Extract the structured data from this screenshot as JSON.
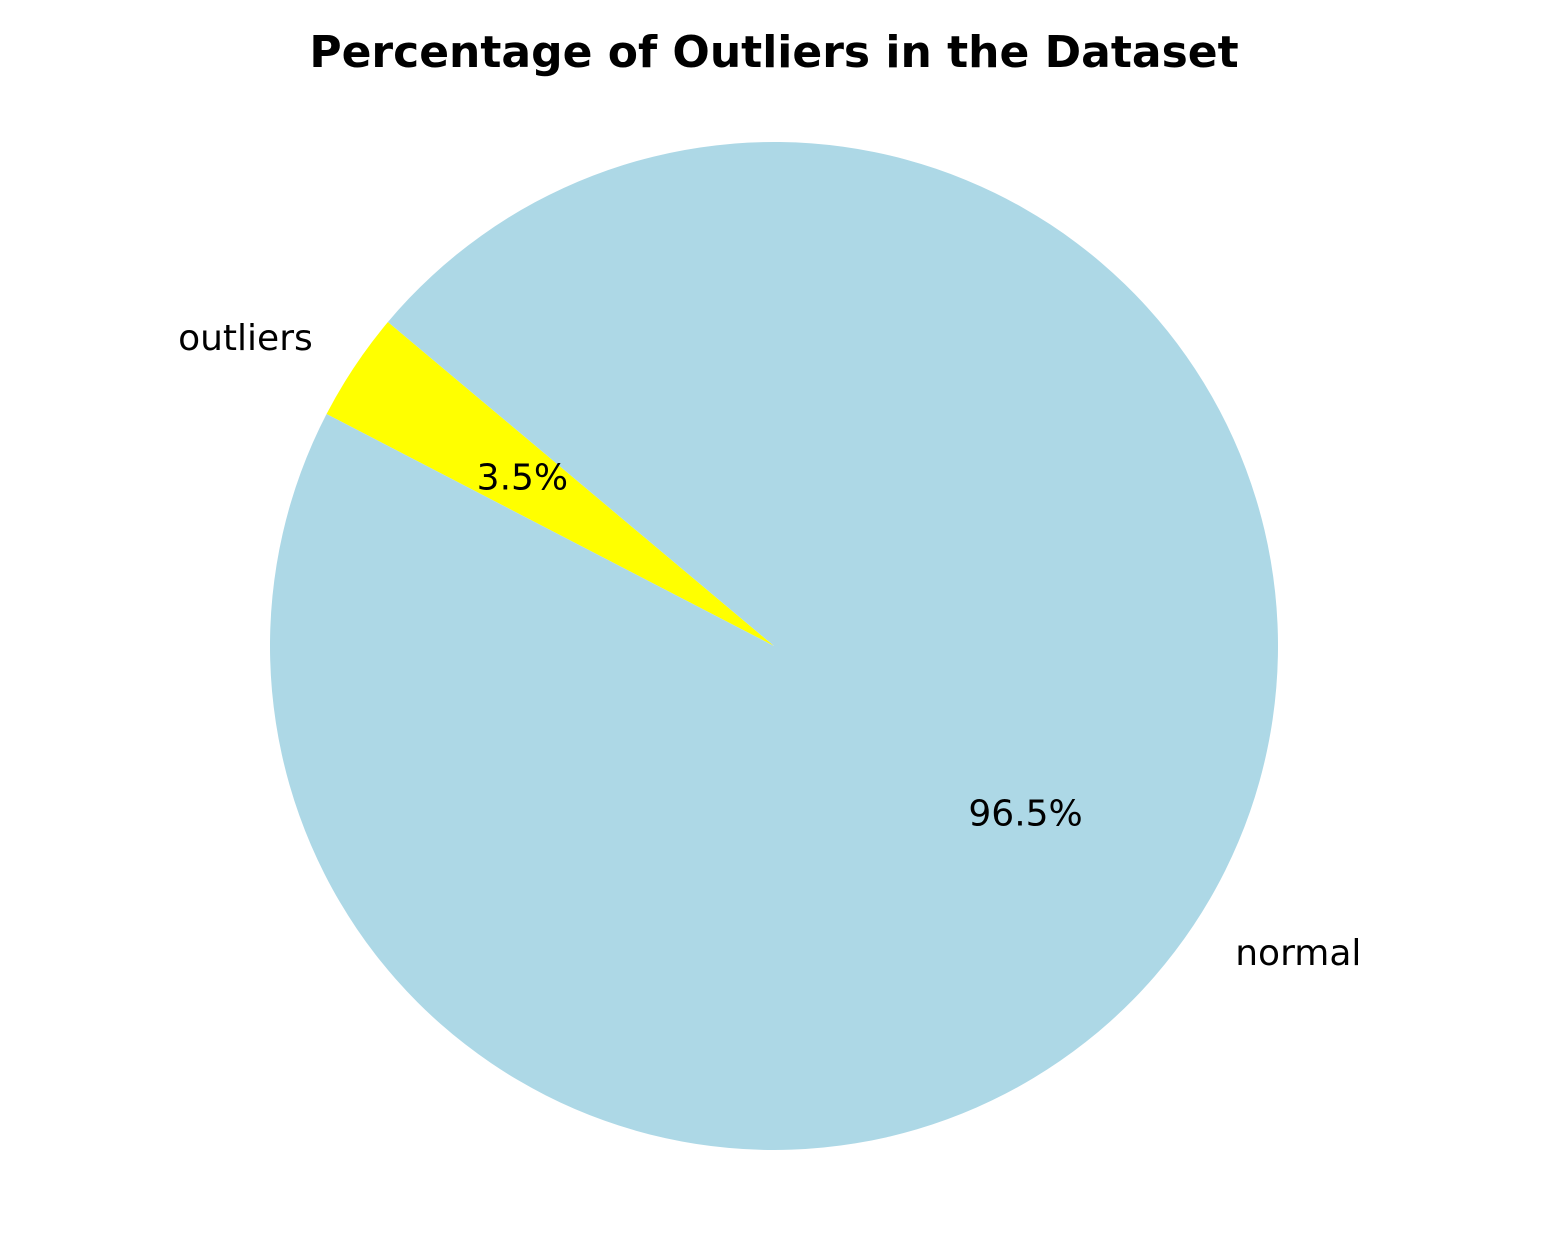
{
  "chart_data": {
    "type": "pie",
    "title": "Percentage of Outliers in the Dataset",
    "categories": [
      "outliers",
      "normal"
    ],
    "values": [
      3.5,
      96.5
    ],
    "percent_labels": [
      "3.5%",
      "96.5%"
    ],
    "colors": [
      "#ffff00",
      "#add8e6"
    ],
    "start_angle_deg": 140,
    "direction": "counterclockwise",
    "legend": "none"
  }
}
